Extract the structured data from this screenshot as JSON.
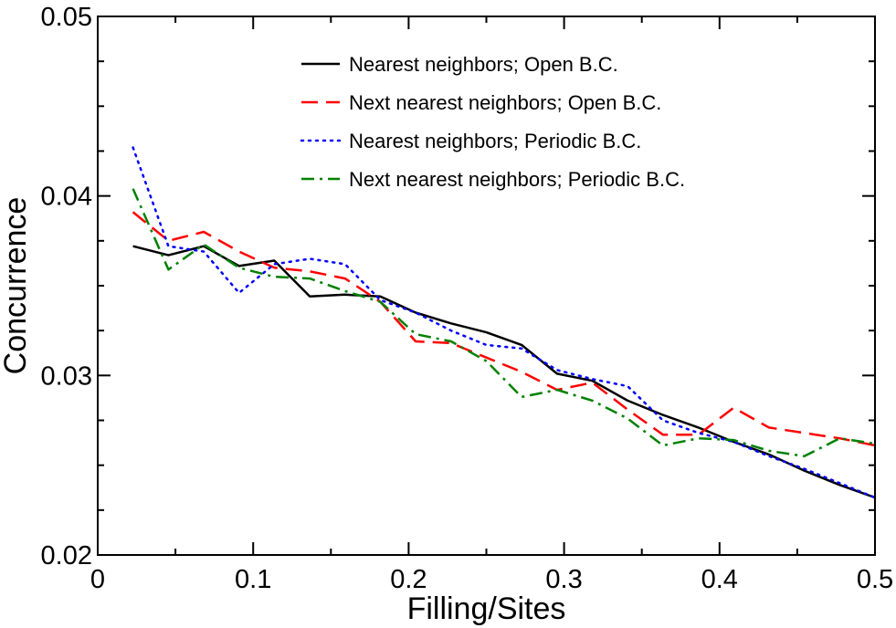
{
  "chart_data": {
    "type": "line",
    "title": "",
    "xlabel": "Filling/Sites",
    "ylabel": "Concurrence",
    "xlim": [
      0,
      0.5
    ],
    "ylim": [
      0.02,
      0.05
    ],
    "xticks": [
      0,
      0.1,
      0.2,
      0.3,
      0.4,
      0.5
    ],
    "xtick_labels": [
      "0",
      "0.1",
      "0.2",
      "0.3",
      "0.4",
      "0.5"
    ],
    "yticks": [
      0.02,
      0.03,
      0.04,
      0.05
    ],
    "ytick_labels": [
      "0.02",
      "0.03",
      "0.04",
      "0.05"
    ],
    "grid": false,
    "legend_position": "top-right",
    "x": [
      0.0227,
      0.0455,
      0.0682,
      0.0909,
      0.1136,
      0.1364,
      0.1591,
      0.1818,
      0.2045,
      0.2273,
      0.25,
      0.2727,
      0.2955,
      0.3182,
      0.3409,
      0.3636,
      0.3864,
      0.4091,
      0.4318,
      0.4545,
      0.4773,
      0.5
    ],
    "series": [
      {
        "name": "Nearest neighbors; Open B.C.",
        "color": "#000000",
        "dash": "solid",
        "values": [
          0.0372,
          0.0367,
          0.0372,
          0.0361,
          0.0364,
          0.0344,
          0.0345,
          0.0344,
          0.0335,
          0.0329,
          0.0324,
          0.0317,
          0.0301,
          0.0297,
          0.0286,
          0.0278,
          0.0271,
          0.0263,
          0.0256,
          0.0247,
          0.0239,
          0.0232
        ]
      },
      {
        "name": "Next nearest neighbors; Open B.C.",
        "color": "#ff0000",
        "dash": "long-dash",
        "values": [
          0.0391,
          0.0375,
          0.038,
          0.0369,
          0.036,
          0.0358,
          0.0354,
          0.0341,
          0.0319,
          0.0318,
          0.031,
          0.0302,
          0.0292,
          0.0296,
          0.0281,
          0.0267,
          0.0267,
          0.0282,
          0.0271,
          0.0268,
          0.0265,
          0.0261
        ]
      },
      {
        "name": "Nearest neighbors; Periodic B.C.",
        "color": "#0000ff",
        "dash": "dotted",
        "values": [
          0.0427,
          0.0372,
          0.0369,
          0.0346,
          0.0362,
          0.0365,
          0.0362,
          0.0342,
          0.0335,
          0.0325,
          0.0317,
          0.0315,
          0.0303,
          0.0298,
          0.0294,
          0.0275,
          0.0268,
          0.0263,
          0.0255,
          0.0248,
          0.024,
          0.0232
        ]
      },
      {
        "name": "Next nearest neighbors; Periodic B.C.",
        "color": "#008000",
        "dash": "dash-dot",
        "values": [
          0.0404,
          0.0359,
          0.0373,
          0.036,
          0.0355,
          0.0354,
          0.0347,
          0.0341,
          0.0323,
          0.0319,
          0.0308,
          0.0288,
          0.0292,
          0.0286,
          0.0276,
          0.0261,
          0.0265,
          0.0264,
          0.0258,
          0.0255,
          0.0265,
          0.0262
        ]
      }
    ]
  }
}
